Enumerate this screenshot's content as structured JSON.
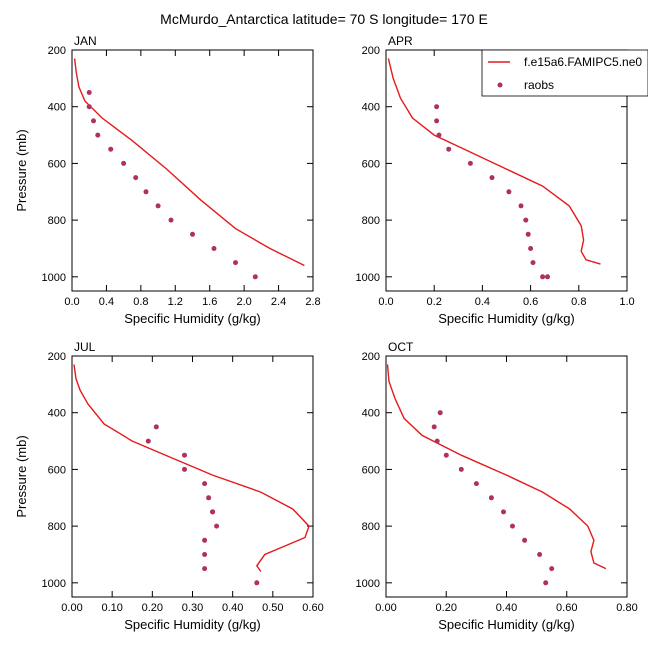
{
  "title": "McMurdo_Antarctica  latitude= 70 S longitude= 170 E",
  "legend": {
    "model_label": "f.e15a6.FAMIPC5.ne0",
    "obs_label": "raobs"
  },
  "colors": {
    "model": "#e41a1c",
    "obs": "#b03060",
    "axis": "#000000"
  },
  "chart_data": [
    {
      "type": "line",
      "title": "JAN",
      "xlabel": "Specific Humidity (g/kg)",
      "ylabel": "Pressure (mb)",
      "xlim": [
        0,
        2.8
      ],
      "ylim": [
        200,
        1050
      ],
      "y_inverted": true,
      "xticks": [
        0,
        0.4,
        0.8,
        1.2,
        1.6,
        2.0,
        2.4,
        2.8
      ],
      "xtick_labels": [
        "0.0",
        "0.4",
        "0.8",
        "1.2",
        "1.6",
        "2.0",
        "2.4",
        "2.8"
      ],
      "yticks": [
        200,
        400,
        600,
        800,
        1000
      ],
      "ytick_labels": [
        "200",
        "400",
        "600",
        "800",
        "1000"
      ],
      "model": {
        "x": [
          0.03,
          0.05,
          0.08,
          0.15,
          0.35,
          0.7,
          1.1,
          1.5,
          1.9,
          2.3,
          2.7
        ],
        "y": [
          230,
          280,
          330,
          380,
          440,
          520,
          620,
          730,
          830,
          900,
          960
        ]
      },
      "obs": {
        "x": [
          0.2,
          0.2,
          0.25,
          0.3,
          0.45,
          0.6,
          0.74,
          0.86,
          1.0,
          1.15,
          1.4,
          1.65,
          1.9,
          2.13
        ],
        "y": [
          350,
          400,
          450,
          500,
          550,
          600,
          650,
          700,
          750,
          800,
          850,
          900,
          950,
          1000
        ]
      }
    },
    {
      "type": "line",
      "title": "APR",
      "xlabel": "Specific Humidity (g/kg)",
      "ylabel": "",
      "xlim": [
        0,
        1.0
      ],
      "ylim": [
        200,
        1050
      ],
      "y_inverted": true,
      "xticks": [
        0,
        0.2,
        0.4,
        0.6,
        0.8,
        1.0
      ],
      "xtick_labels": [
        "0.0",
        "0.2",
        "0.4",
        "0.6",
        "0.8",
        "1.0"
      ],
      "yticks": [
        200,
        400,
        600,
        800,
        1000
      ],
      "ytick_labels": [
        "200",
        "400",
        "600",
        "800",
        "1000"
      ],
      "model": {
        "x": [
          0.01,
          0.03,
          0.06,
          0.11,
          0.2,
          0.35,
          0.5,
          0.65,
          0.76,
          0.81,
          0.82,
          0.81,
          0.83,
          0.89
        ],
        "y": [
          230,
          300,
          370,
          440,
          500,
          560,
          620,
          680,
          750,
          820,
          870,
          910,
          940,
          955
        ]
      },
      "obs": {
        "x": [
          0.21,
          0.21,
          0.22,
          0.26,
          0.35,
          0.44,
          0.51,
          0.56,
          0.58,
          0.59,
          0.6,
          0.61,
          0.65,
          0.67
        ],
        "y": [
          400,
          450,
          500,
          550,
          600,
          650,
          700,
          750,
          800,
          850,
          900,
          950,
          1000,
          1000
        ]
      }
    },
    {
      "type": "line",
      "title": "JUL",
      "xlabel": "Specific Humidity (g/kg)",
      "ylabel": "Pressure (mb)",
      "xlim": [
        0,
        0.6
      ],
      "ylim": [
        200,
        1050
      ],
      "y_inverted": true,
      "xticks": [
        0,
        0.1,
        0.2,
        0.3,
        0.4,
        0.5,
        0.6
      ],
      "xtick_labels": [
        "0.00",
        "0.10",
        "0.20",
        "0.30",
        "0.40",
        "0.50",
        "0.60"
      ],
      "yticks": [
        200,
        400,
        600,
        800,
        1000
      ],
      "ytick_labels": [
        "200",
        "400",
        "600",
        "800",
        "1000"
      ],
      "model": {
        "x": [
          0.005,
          0.01,
          0.02,
          0.04,
          0.08,
          0.15,
          0.25,
          0.35,
          0.47,
          0.55,
          0.59,
          0.58,
          0.53,
          0.48,
          0.46,
          0.47
        ],
        "y": [
          230,
          280,
          320,
          370,
          440,
          500,
          560,
          620,
          680,
          740,
          800,
          840,
          870,
          900,
          940,
          960
        ]
      },
      "obs": {
        "x": [
          0.21,
          0.19,
          0.28,
          0.28,
          0.33,
          0.34,
          0.35,
          0.35,
          0.36,
          0.33,
          0.33,
          0.33,
          0.46
        ],
        "y": [
          450,
          500,
          550,
          600,
          650,
          700,
          750,
          750,
          800,
          850,
          900,
          950,
          1000
        ]
      }
    },
    {
      "type": "line",
      "title": "OCT",
      "xlabel": "Specific Humidity (g/kg)",
      "ylabel": "",
      "xlim": [
        0,
        0.8
      ],
      "ylim": [
        200,
        1050
      ],
      "y_inverted": true,
      "xticks": [
        0,
        0.2,
        0.4,
        0.6,
        0.8
      ],
      "xtick_labels": [
        "0.00",
        "0.20",
        "0.40",
        "0.60",
        "0.80"
      ],
      "yticks": [
        200,
        400,
        600,
        800,
        1000
      ],
      "ytick_labels": [
        "200",
        "400",
        "600",
        "800",
        "1000"
      ],
      "model": {
        "x": [
          0.005,
          0.01,
          0.03,
          0.06,
          0.12,
          0.25,
          0.4,
          0.52,
          0.61,
          0.67,
          0.69,
          0.68,
          0.69,
          0.73
        ],
        "y": [
          230,
          290,
          350,
          420,
          480,
          550,
          620,
          680,
          740,
          800,
          850,
          890,
          930,
          950
        ]
      },
      "obs": {
        "x": [
          0.18,
          0.16,
          0.17,
          0.2,
          0.25,
          0.3,
          0.35,
          0.39,
          0.42,
          0.46,
          0.51,
          0.55,
          0.53
        ],
        "y": [
          400,
          450,
          500,
          550,
          600,
          650,
          700,
          750,
          800,
          850,
          900,
          950,
          1000
        ]
      }
    }
  ]
}
